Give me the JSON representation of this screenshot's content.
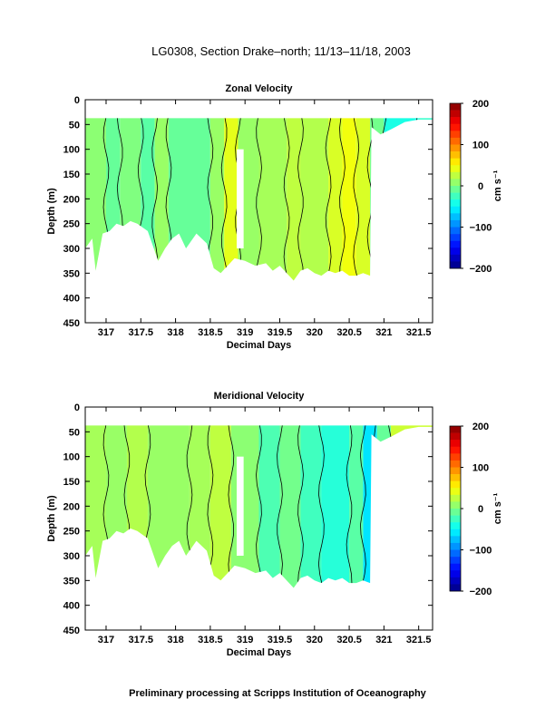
{
  "figure": {
    "title": "LG0308, Section Drake–north; 11/13–11/18, 2003",
    "footer": "Preliminary processing at Scripps Institution of Oceanography"
  },
  "chart_data": [
    {
      "type": "heatmap",
      "title": "Zonal Velocity",
      "xlabel": "Decimal Days",
      "ylabel": "Depth (m)",
      "xlim": [
        316.7,
        321.7
      ],
      "ylim": [
        450,
        0
      ],
      "xticks": [
        317,
        317.5,
        318,
        318.5,
        319,
        319.5,
        320,
        320.5,
        321,
        321.5
      ],
      "yticks": [
        0,
        50,
        100,
        150,
        200,
        250,
        300,
        350,
        400,
        450
      ],
      "colorbar": {
        "label": "cm s⁻¹",
        "range": [
          -200,
          200
        ],
        "ticks": [
          200,
          100,
          0,
          -100,
          -200
        ]
      },
      "bins": [
        {
          "x0": 316.7,
          "x1": 317.0,
          "v": 5
        },
        {
          "x0": 317.0,
          "x1": 317.2,
          "v": -10
        },
        {
          "x0": 317.2,
          "x1": 317.5,
          "v": 0
        },
        {
          "x0": 317.5,
          "x1": 317.7,
          "v": -15
        },
        {
          "x0": 317.7,
          "x1": 317.9,
          "v": 10
        },
        {
          "x0": 317.9,
          "x1": 318.5,
          "v": -10
        },
        {
          "x0": 318.5,
          "x1": 318.7,
          "v": 10
        },
        {
          "x0": 318.7,
          "x1": 318.9,
          "v": 40
        },
        {
          "x0": 318.9,
          "x1": 319.2,
          "v": 10
        },
        {
          "x0": 319.2,
          "x1": 319.6,
          "v": 15
        },
        {
          "x0": 319.6,
          "x1": 319.8,
          "v": 25
        },
        {
          "x0": 319.8,
          "x1": 320.2,
          "v": 20
        },
        {
          "x0": 320.2,
          "x1": 320.4,
          "v": 35
        },
        {
          "x0": 320.4,
          "x1": 320.6,
          "v": 45
        },
        {
          "x0": 320.6,
          "x1": 320.8,
          "v": 35
        },
        {
          "x0": 320.8,
          "x1": 321.0,
          "v": -5
        },
        {
          "x0": 321.0,
          "x1": 321.5,
          "v": -40
        },
        {
          "x0": 321.5,
          "x1": 321.7,
          "v": -30
        }
      ]
    },
    {
      "type": "heatmap",
      "title": "Meridional Velocity",
      "xlabel": "Decimal Days",
      "ylabel": "Depth (m)",
      "xlim": [
        316.7,
        321.7
      ],
      "ylim": [
        450,
        0
      ],
      "xticks": [
        317,
        317.5,
        318,
        318.5,
        319,
        319.5,
        320,
        320.5,
        321,
        321.5
      ],
      "yticks": [
        0,
        50,
        100,
        150,
        200,
        250,
        300,
        350,
        400,
        450
      ],
      "colorbar": {
        "label": "cm s⁻¹",
        "range": [
          -200,
          200
        ],
        "ticks": [
          200,
          100,
          0,
          -100,
          -200
        ]
      },
      "bins": [
        {
          "x0": 316.7,
          "x1": 317.0,
          "v": 15
        },
        {
          "x0": 317.0,
          "x1": 317.3,
          "v": 10
        },
        {
          "x0": 317.3,
          "x1": 317.6,
          "v": 20
        },
        {
          "x0": 317.6,
          "x1": 318.2,
          "v": 10
        },
        {
          "x0": 318.2,
          "x1": 318.5,
          "v": 15
        },
        {
          "x0": 318.5,
          "x1": 318.8,
          "v": 25
        },
        {
          "x0": 318.8,
          "x1": 319.2,
          "v": 5
        },
        {
          "x0": 319.2,
          "x1": 319.5,
          "v": -20
        },
        {
          "x0": 319.5,
          "x1": 319.8,
          "v": -5
        },
        {
          "x0": 319.8,
          "x1": 320.1,
          "v": -25
        },
        {
          "x0": 320.1,
          "x1": 320.5,
          "v": -35
        },
        {
          "x0": 320.5,
          "x1": 320.7,
          "v": -15
        },
        {
          "x0": 320.7,
          "x1": 320.9,
          "v": -60
        },
        {
          "x0": 320.9,
          "x1": 321.1,
          "v": -10
        },
        {
          "x0": 321.1,
          "x1": 321.7,
          "v": 30
        }
      ]
    }
  ]
}
